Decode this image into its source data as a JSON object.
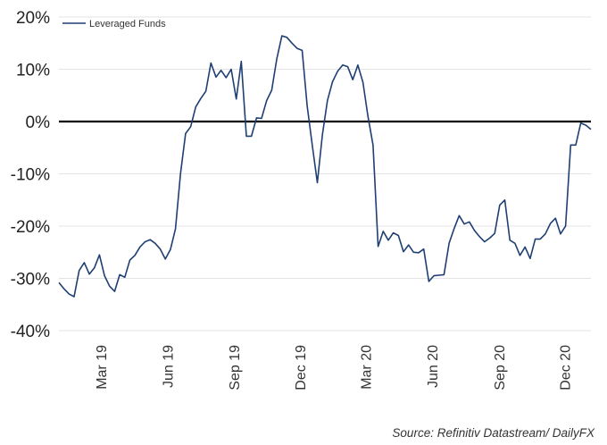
{
  "chart_data": {
    "type": "line",
    "title": "",
    "xlabel": "",
    "ylabel": "",
    "ylim": [
      -40,
      20
    ],
    "y_ticks": [
      "20%",
      "10%",
      "0%",
      "-10%",
      "-20%",
      "-30%",
      "-40%"
    ],
    "x_ticks": [
      "Mar 19",
      "Jun 19",
      "Sep 19",
      "Dec 19",
      "Mar 20",
      "Jun 20",
      "Sep 20",
      "Dec 20"
    ],
    "grid": "horizontal",
    "zero_line": true,
    "legend_position": "top-left",
    "series": [
      {
        "name": "Leveraged Funds",
        "color": "#1f3f73",
        "x": [
          "2019-01-01",
          "2019-01-08",
          "2019-01-15",
          "2019-01-22",
          "2019-01-29",
          "2019-02-05",
          "2019-02-12",
          "2019-02-19",
          "2019-02-26",
          "2019-03-05",
          "2019-03-12",
          "2019-03-19",
          "2019-03-26",
          "2019-04-02",
          "2019-04-09",
          "2019-04-16",
          "2019-04-23",
          "2019-04-30",
          "2019-05-07",
          "2019-05-14",
          "2019-05-21",
          "2019-05-28",
          "2019-06-04",
          "2019-06-11",
          "2019-06-18",
          "2019-06-25",
          "2019-07-02",
          "2019-07-09",
          "2019-07-16",
          "2019-07-23",
          "2019-07-30",
          "2019-08-06",
          "2019-08-13",
          "2019-08-20",
          "2019-08-27",
          "2019-09-03",
          "2019-09-10",
          "2019-09-17",
          "2019-09-24",
          "2019-10-01",
          "2019-10-08",
          "2019-10-15",
          "2019-10-22",
          "2019-10-29",
          "2019-11-05",
          "2019-11-12",
          "2019-11-19",
          "2019-11-26",
          "2019-12-03",
          "2019-12-10",
          "2019-12-17",
          "2019-12-24",
          "2019-12-31",
          "2020-01-07",
          "2020-01-14",
          "2020-01-21",
          "2020-01-28",
          "2020-02-04",
          "2020-02-11",
          "2020-02-18",
          "2020-02-25",
          "2020-03-03",
          "2020-03-10",
          "2020-03-17",
          "2020-03-24",
          "2020-03-31",
          "2020-04-07",
          "2020-04-14",
          "2020-04-21",
          "2020-04-28",
          "2020-05-05",
          "2020-05-12",
          "2020-05-19",
          "2020-05-26",
          "2020-06-02",
          "2020-06-09",
          "2020-06-16",
          "2020-06-23",
          "2020-06-30",
          "2020-07-07",
          "2020-07-14",
          "2020-07-21",
          "2020-07-28",
          "2020-08-04",
          "2020-08-11",
          "2020-08-18",
          "2020-08-25",
          "2020-09-01",
          "2020-09-08",
          "2020-09-15",
          "2020-09-22",
          "2020-09-29",
          "2020-10-06",
          "2020-10-13",
          "2020-10-20",
          "2020-10-27",
          "2020-11-03",
          "2020-11-10",
          "2020-11-17",
          "2020-11-24",
          "2020-12-01",
          "2020-12-08",
          "2020-12-15",
          "2020-12-22",
          "2020-12-29",
          "2021-01-05"
        ],
        "values": [
          -30.8,
          -32.0,
          -33.0,
          -33.5,
          -28.5,
          -27.0,
          -29.2,
          -28.0,
          -25.5,
          -29.5,
          -31.5,
          -32.5,
          -29.3,
          -29.8,
          -26.5,
          -25.6,
          -24.0,
          -23.0,
          -22.6,
          -23.3,
          -24.4,
          -26.3,
          -24.5,
          -20.5,
          -10.0,
          -2.3,
          -1.0,
          2.8,
          4.4,
          5.8,
          11.2,
          8.5,
          9.8,
          8.4,
          10.0,
          4.3,
          11.5,
          -2.8,
          -2.8,
          0.7,
          0.6,
          4.0,
          6.0,
          12.0,
          16.4,
          16.1,
          15.0,
          14.0,
          13.6,
          3.0,
          -4.5,
          -11.7,
          -2.5,
          4.0,
          7.6,
          9.6,
          10.8,
          10.5,
          8.0,
          10.8,
          7.5,
          1.0,
          -4.5,
          -23.9,
          -21.0,
          -22.7,
          -21.3,
          -21.8,
          -24.9,
          -23.6,
          -25.0,
          -25.1,
          -24.4,
          -30.6,
          -29.5,
          -29.4,
          -29.3,
          -23.3,
          -20.5,
          -18.0,
          -19.6,
          -19.2,
          -20.8,
          -22.0,
          -23.0,
          -22.3,
          -21.4,
          -16.0,
          -15.0,
          -22.7,
          -23.3,
          -25.6,
          -24.0,
          -26.2,
          -22.5,
          -22.5,
          -21.5,
          -19.5,
          -18.5,
          -21.5,
          -20.0,
          -4.5,
          -4.5,
          -0.3,
          -0.7,
          -1.5
        ]
      }
    ],
    "source": "Source: Refinitiv Datastream/ DailyFX"
  }
}
